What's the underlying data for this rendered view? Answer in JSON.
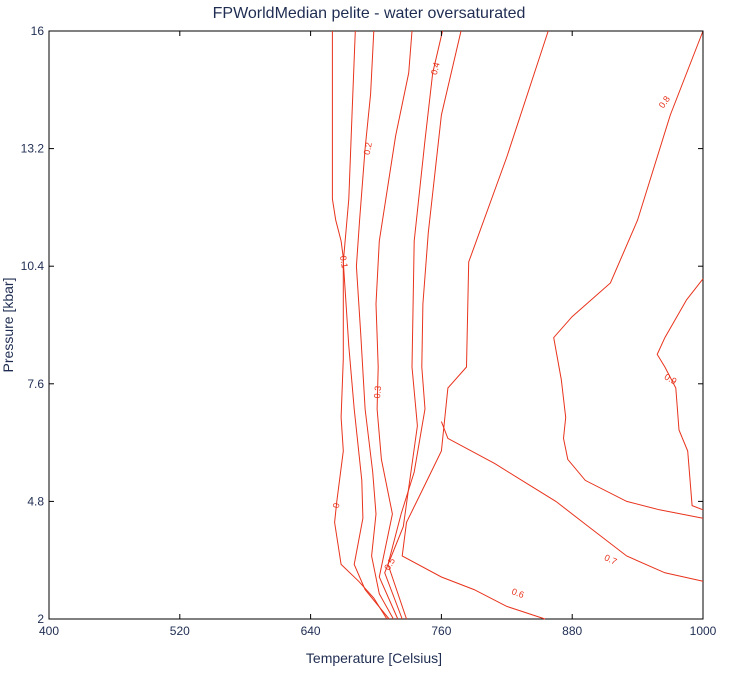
{
  "chart_data": {
    "type": "line",
    "title": "FPWorldMedian pelite - water oversaturated",
    "xlabel": "Temperature [Celsius]",
    "ylabel": "Pressure [kbar]",
    "xlim": [
      400,
      1000
    ],
    "ylim": [
      2,
      16
    ],
    "xticks": [
      "400",
      "520",
      "640",
      "760",
      "880",
      "1000"
    ],
    "yticks": [
      "2",
      "4.8",
      "7.6",
      "10.4",
      "13.2",
      "16"
    ],
    "grid": false,
    "colors": {
      "contour": "#e8331c",
      "text": "#1f2d52",
      "frame": "#000000"
    },
    "series": [
      {
        "name": "0",
        "points": [
          [
            660,
            16
          ],
          [
            660,
            12
          ],
          [
            663,
            11.5
          ],
          [
            668,
            11
          ],
          [
            670,
            10.6
          ],
          [
            670,
            8.2
          ],
          [
            668,
            6.8
          ],
          [
            670,
            6
          ],
          [
            664,
            4.8
          ],
          [
            662,
            4.3
          ],
          [
            668,
            3.3
          ],
          [
            684,
            2.9
          ],
          [
            698,
            2.5
          ],
          [
            710,
            2
          ]
        ]
      },
      {
        "name": "0.1",
        "points": [
          [
            681,
            16
          ],
          [
            678,
            14
          ],
          [
            675,
            12
          ],
          [
            670,
            10.5
          ],
          [
            675,
            8.5
          ],
          [
            680,
            7
          ],
          [
            687,
            5.3
          ],
          [
            688,
            4.4
          ],
          [
            680,
            3.3
          ],
          [
            690,
            2.7
          ],
          [
            712,
            2
          ]
        ]
      },
      {
        "name": "0.2",
        "points": [
          [
            698,
            16
          ],
          [
            695,
            14.5
          ],
          [
            690,
            13.2
          ],
          [
            685,
            11.5
          ],
          [
            682,
            10.4
          ],
          [
            686,
            8.8
          ],
          [
            690,
            7
          ],
          [
            697,
            5.5
          ],
          [
            700,
            4.5
          ],
          [
            696,
            3.5
          ],
          [
            703,
            2.6
          ],
          [
            716,
            2
          ]
        ]
      },
      {
        "name": "0.3",
        "points": [
          [
            733,
            16
          ],
          [
            730,
            15
          ],
          [
            718,
            13.5
          ],
          [
            703,
            11
          ],
          [
            700,
            9.5
          ],
          [
            702,
            8
          ],
          [
            701,
            7
          ],
          [
            705,
            5.8
          ],
          [
            715,
            4.5
          ],
          [
            703,
            3
          ],
          [
            720,
            2
          ]
        ]
      },
      {
        "name": "0.4",
        "points": [
          [
            761,
            16
          ],
          [
            752,
            15
          ],
          [
            745,
            13.4
          ],
          [
            735,
            11
          ],
          [
            733,
            8
          ],
          [
            738,
            6.6
          ],
          [
            725,
            4.2
          ],
          [
            708,
            3.1
          ],
          [
            724,
            2
          ]
        ]
      },
      {
        "name": "0.5",
        "points": [
          [
            778,
            16
          ],
          [
            760,
            14
          ],
          [
            748,
            11.2
          ],
          [
            743,
            9.5
          ],
          [
            742,
            8
          ],
          [
            745,
            7
          ],
          [
            735,
            5.5
          ],
          [
            723,
            4.5
          ],
          [
            711,
            3.3
          ],
          [
            728,
            2
          ]
        ]
      },
      {
        "name": "0.6",
        "points": [
          [
            858,
            16
          ],
          [
            820,
            13
          ],
          [
            785,
            10.5
          ],
          [
            783,
            8
          ],
          [
            766,
            7.5
          ],
          [
            760,
            6
          ],
          [
            745,
            5.2
          ],
          [
            728,
            4.3
          ],
          [
            724,
            3.5
          ],
          [
            760,
            3
          ],
          [
            790,
            2.7
          ],
          [
            820,
            2.3
          ],
          [
            855,
            2
          ]
        ]
      },
      {
        "name": "0.7",
        "points": [
          [
            1000,
            2.9
          ],
          [
            965,
            3.1
          ],
          [
            930,
            3.5
          ],
          [
            895,
            4.2
          ],
          [
            865,
            4.8
          ],
          [
            840,
            5.2
          ],
          [
            809,
            5.7
          ],
          [
            766,
            6.3
          ],
          [
            760,
            6.7
          ]
        ]
      },
      {
        "name": "0.8",
        "points": [
          [
            1000,
            16
          ],
          [
            970,
            14
          ],
          [
            940,
            11.5
          ],
          [
            915,
            10
          ],
          [
            880,
            9.2
          ],
          [
            863,
            8.7
          ],
          [
            870,
            7.7
          ],
          [
            874,
            6.8
          ],
          [
            872,
            6.3
          ],
          [
            876,
            5.8
          ],
          [
            892,
            5.3
          ],
          [
            930,
            4.8
          ],
          [
            960,
            4.6
          ],
          [
            1000,
            4.4
          ]
        ]
      },
      {
        "name": "0.9",
        "points": [
          [
            1000,
            10.1
          ],
          [
            985,
            9.6
          ],
          [
            965,
            8.7
          ],
          [
            958,
            8.3
          ],
          [
            965,
            8
          ],
          [
            975,
            7.5
          ],
          [
            978,
            6.5
          ],
          [
            986,
            6
          ],
          [
            990,
            4.7
          ],
          [
            1000,
            4.6
          ]
        ]
      }
    ],
    "contour_labels": [
      "0",
      "0.1",
      "0.2",
      "0.3",
      "0.4",
      "0.5",
      "0.6",
      "0.7",
      "0.8",
      "0.9"
    ]
  }
}
